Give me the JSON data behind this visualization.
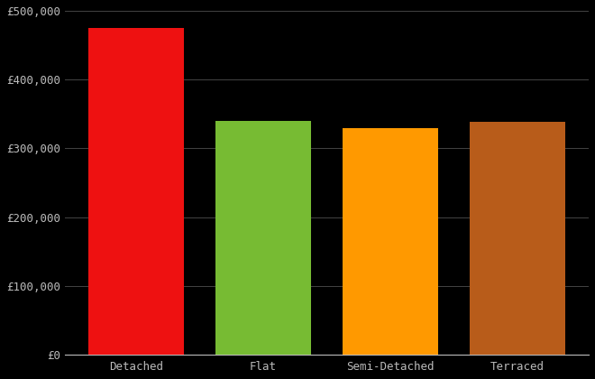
{
  "categories": [
    "Detached",
    "Flat",
    "Semi-Detached",
    "Terraced"
  ],
  "values": [
    475000,
    340000,
    330000,
    338000
  ],
  "bar_colors": [
    "#ee1111",
    "#77bb33",
    "#ff9900",
    "#b85c1a"
  ],
  "background_color": "#000000",
  "text_color": "#bbbbbb",
  "grid_color": "#444444",
  "ylim": [
    0,
    500000
  ],
  "ytick_values": [
    0,
    100000,
    200000,
    300000,
    400000,
    500000
  ],
  "bar_width": 0.75,
  "figsize": [
    6.6,
    4.2
  ],
  "dpi": 100
}
